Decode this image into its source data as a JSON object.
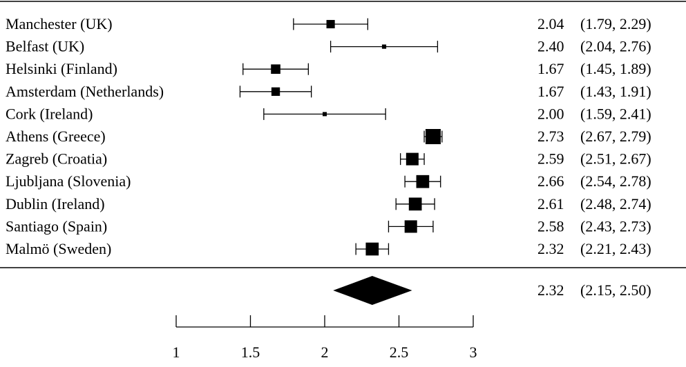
{
  "chart_data": {
    "type": "forest",
    "title": "",
    "xlabel": "",
    "ylabel": "",
    "xlim": [
      1,
      3
    ],
    "xticks": [
      "1",
      "1.5",
      "2",
      "2.5",
      "3"
    ],
    "grid": false,
    "rows": [
      {
        "label": "Manchester (UK)",
        "estimate": 2.04,
        "lower": 1.79,
        "upper": 2.29,
        "estimate_text": "2.04",
        "ci_text": "(1.79, 2.29)",
        "weight": 0.55
      },
      {
        "label": "Belfast (UK)",
        "estimate": 2.4,
        "lower": 2.04,
        "upper": 2.76,
        "estimate_text": "2.40",
        "ci_text": "(2.04, 2.76)",
        "weight": 0.28
      },
      {
        "label": "Helsinki (Finland)",
        "estimate": 1.67,
        "lower": 1.45,
        "upper": 1.89,
        "estimate_text": "1.67",
        "ci_text": "(1.45, 1.89)",
        "weight": 0.62
      },
      {
        "label": "Amsterdam (Netherlands)",
        "estimate": 1.67,
        "lower": 1.43,
        "upper": 1.91,
        "estimate_text": "1.67",
        "ci_text": "(1.43, 1.91)",
        "weight": 0.56
      },
      {
        "label": "Cork (Ireland)",
        "estimate": 2.0,
        "lower": 1.59,
        "upper": 2.41,
        "estimate_text": "2.00",
        "ci_text": "(1.59, 2.41)",
        "weight": 0.22
      },
      {
        "label": "Athens (Greece)",
        "estimate": 2.73,
        "lower": 2.67,
        "upper": 2.79,
        "estimate_text": "2.73",
        "ci_text": "(2.67, 2.79)",
        "weight": 1.0
      },
      {
        "label": "Zagreb (Croatia)",
        "estimate": 2.59,
        "lower": 2.51,
        "upper": 2.67,
        "estimate_text": "2.59",
        "ci_text": "(2.51, 2.67)",
        "weight": 0.82
      },
      {
        "label": "Ljubljana (Slovenia)",
        "estimate": 2.66,
        "lower": 2.54,
        "upper": 2.78,
        "estimate_text": "2.66",
        "ci_text": "(2.54, 2.78)",
        "weight": 0.85
      },
      {
        "label": "Dublin (Ireland)",
        "estimate": 2.61,
        "lower": 2.48,
        "upper": 2.74,
        "estimate_text": "2.61",
        "ci_text": "(2.48, 2.74)",
        "weight": 0.85
      },
      {
        "label": "Santiago (Spain)",
        "estimate": 2.58,
        "lower": 2.43,
        "upper": 2.73,
        "estimate_text": "2.58",
        "ci_text": "(2.43, 2.73)",
        "weight": 0.82
      },
      {
        "label": "Malmö (Sweden)",
        "estimate": 2.32,
        "lower": 2.21,
        "upper": 2.43,
        "estimate_text": "2.32",
        "ci_text": "(2.21, 2.43)",
        "weight": 0.85
      }
    ],
    "summary": {
      "estimate": 2.32,
      "lower": 2.15,
      "upper": 2.5,
      "estimate_text": "2.32",
      "ci_text": "(2.15, 2.50)"
    }
  }
}
